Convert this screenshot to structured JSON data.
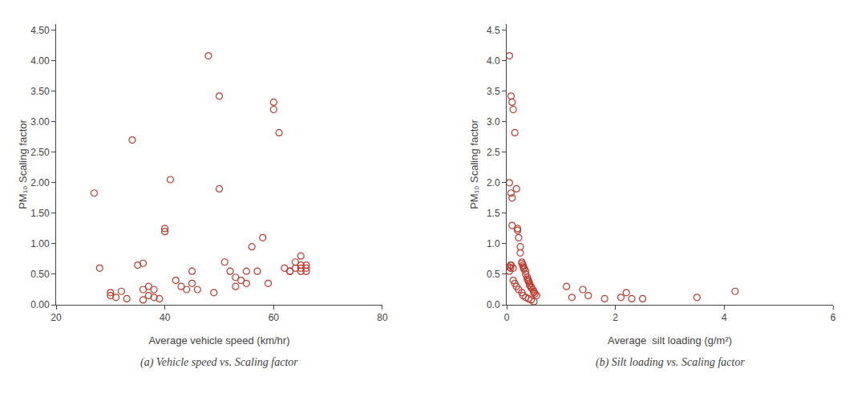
{
  "chart_data": [
    {
      "type": "scatter",
      "title": "(a) Vehicle speed vs. Scaling factor",
      "x_label": "Average vehicle speed (km/hr)",
      "y_label": "PM₁₀ Scaling factor",
      "x": [
        27,
        28,
        30,
        30,
        31,
        32,
        33,
        34,
        35,
        36,
        36,
        36,
        37,
        37,
        38,
        38,
        39,
        40,
        40,
        41,
        42,
        43,
        44,
        45,
        45,
        46,
        48,
        49,
        50,
        50,
        51,
        52,
        53,
        53,
        54,
        55,
        55,
        56,
        57,
        58,
        59,
        60,
        60,
        61,
        62,
        63,
        63,
        64,
        64,
        65,
        65,
        65,
        65,
        66,
        66,
        66
      ],
      "values": [
        1.83,
        0.6,
        0.2,
        0.15,
        0.12,
        0.22,
        0.1,
        2.7,
        0.65,
        0.68,
        0.25,
        0.08,
        0.3,
        0.15,
        0.25,
        0.12,
        0.1,
        1.25,
        1.2,
        2.05,
        0.4,
        0.3,
        0.25,
        0.55,
        0.35,
        0.25,
        4.08,
        0.2,
        3.42,
        1.9,
        0.7,
        0.55,
        0.45,
        0.3,
        0.4,
        0.55,
        0.35,
        0.95,
        0.55,
        1.1,
        0.35,
        3.32,
        3.2,
        2.82,
        0.6,
        0.55,
        0.55,
        0.7,
        0.6,
        0.65,
        0.8,
        0.6,
        0.55,
        0.55,
        0.65,
        0.6
      ],
      "color": "#C0392B",
      "marker": "circle-open",
      "xlim": [
        20,
        80
      ],
      "ylim": [
        0,
        4.6
      ],
      "xticks": [
        20,
        40,
        60,
        80
      ],
      "yticks": [
        {
          "value": 0.0,
          "label": "0.00"
        },
        {
          "value": 0.5,
          "label": "0.50"
        },
        {
          "value": 1.0,
          "label": "1.00"
        },
        {
          "value": 1.5,
          "label": "1.50"
        },
        {
          "value": 2.0,
          "label": "2.00"
        },
        {
          "value": 2.5,
          "label": "2.50"
        },
        {
          "value": 3.0,
          "label": "3.00"
        },
        {
          "value": 3.5,
          "label": "3.50"
        },
        {
          "value": 4.0,
          "label": "4.00"
        },
        {
          "value": 4.5,
          "label": "4.50"
        }
      ],
      "grid": false
    },
    {
      "type": "scatter",
      "title": "(b) Silt loading vs. Scaling factor",
      "x_label": "Average  silt loading (g/m²)",
      "y_label": "PM₁₀ Scaling factor",
      "x": [
        0.05,
        0.08,
        0.1,
        0.12,
        0.15,
        0.18,
        0.2,
        0.2,
        0.22,
        0.25,
        0.25,
        0.28,
        0.28,
        0.3,
        0.3,
        0.32,
        0.32,
        0.35,
        0.35,
        0.38,
        0.38,
        0.4,
        0.4,
        0.42,
        0.42,
        0.45,
        0.45,
        0.48,
        0.5,
        0.5,
        0.52,
        0.55,
        0.05,
        0.08,
        0.1,
        0.1,
        0.12,
        1.1,
        1.2,
        1.4,
        1.5,
        1.8,
        2.1,
        2.2,
        2.3,
        2.5,
        3.5,
        4.2,
        0.05,
        0.05,
        0.07,
        0.07,
        0.08,
        0.12,
        0.15,
        0.18,
        0.22,
        0.28,
        0.3,
        0.35,
        0.4,
        0.45,
        0.5
      ],
      "values": [
        4.08,
        3.42,
        3.32,
        3.2,
        2.82,
        1.9,
        1.25,
        1.22,
        1.1,
        0.95,
        0.85,
        0.7,
        0.68,
        0.65,
        0.62,
        0.6,
        0.58,
        0.55,
        0.5,
        0.45,
        0.42,
        0.4,
        0.38,
        0.35,
        0.32,
        0.3,
        0.28,
        0.25,
        0.22,
        0.2,
        0.18,
        0.15,
        2.0,
        1.83,
        1.75,
        1.3,
        0.6,
        0.3,
        0.12,
        0.25,
        0.15,
        0.1,
        0.12,
        0.2,
        0.1,
        0.1,
        0.12,
        0.22,
        0.55,
        0.62,
        0.65,
        0.6,
        0.65,
        0.4,
        0.35,
        0.3,
        0.25,
        0.2,
        0.15,
        0.12,
        0.1,
        0.08,
        0.05
      ],
      "color": "#C0392B",
      "marker": "circle-open",
      "xlim": [
        0,
        6
      ],
      "ylim": [
        0,
        4.6
      ],
      "xticks": [
        0,
        2,
        4,
        6
      ],
      "yticks": [
        {
          "value": 0.0,
          "label": "0.0"
        },
        0.5,
        {
          "value": 1.0,
          "label": "1.0"
        },
        1.5,
        {
          "value": 2.0,
          "label": "2.0"
        },
        2.5,
        {
          "value": 3.0,
          "label": "3.0"
        },
        3.5,
        {
          "value": 4.0,
          "label": "4.0"
        },
        4.5
      ],
      "grid": false
    }
  ]
}
